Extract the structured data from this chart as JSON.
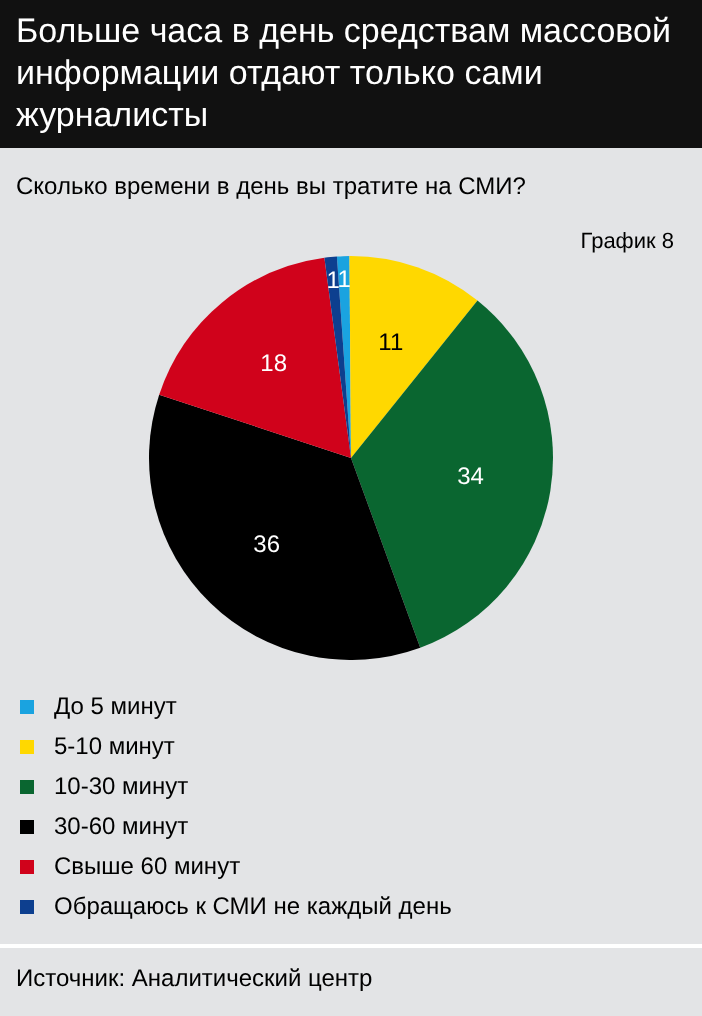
{
  "chart_data": {
    "type": "pie",
    "title": "Больше часа в день средствам массовой информации отдают только сами журналисты",
    "subtitle": "Сколько времени в день вы тратите на СМИ?",
    "categories": [
      "До 5 минут",
      "5-10 минут",
      "10-30 минут",
      "30-60 минут",
      "Свыше 60 минут",
      "Обращаюсь к СМИ не каждый день"
    ],
    "values": [
      1,
      11,
      34,
      36,
      18,
      1
    ],
    "colors": [
      "#1aa3e0",
      "#ffd800",
      "#0a6630",
      "#000000",
      "#d0021b",
      "#0d3f8f"
    ],
    "data_labels": true,
    "legend": "bottom",
    "annotations": [
      "График 8",
      "Источник: Аналитический центр"
    ]
  }
}
